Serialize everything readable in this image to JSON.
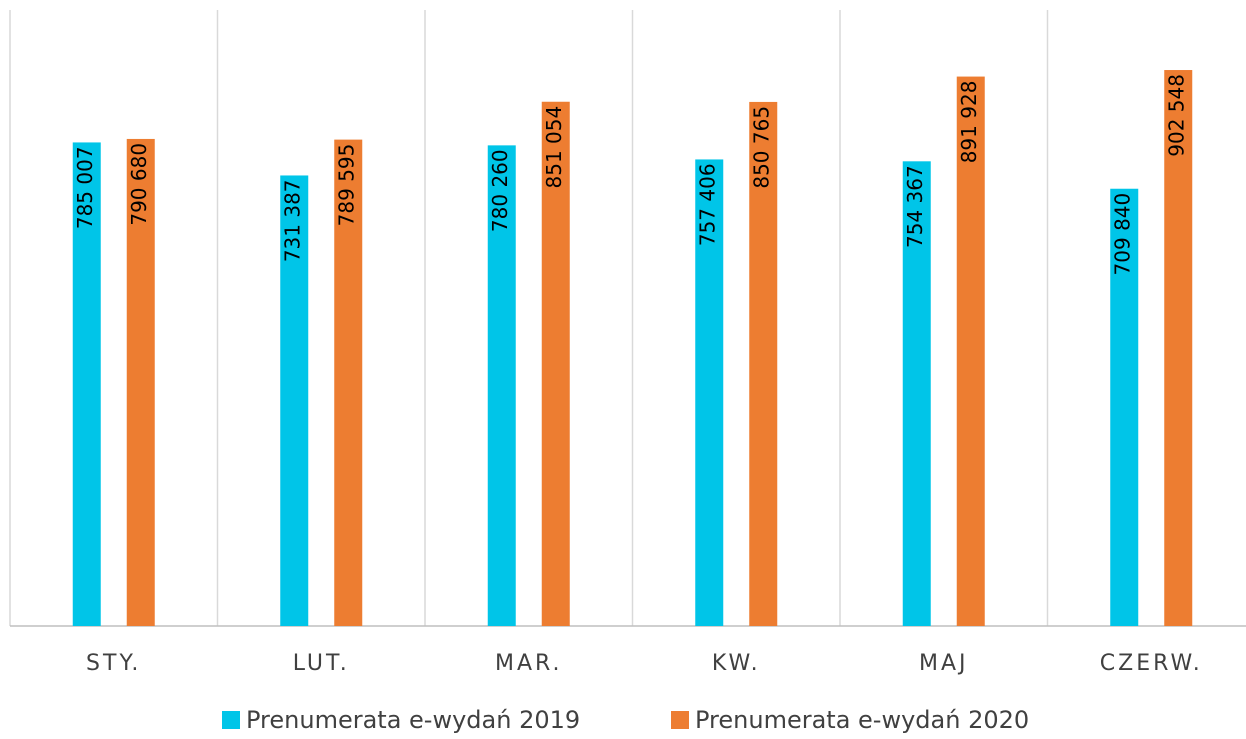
{
  "chart_data": {
    "type": "bar",
    "categories": [
      "STY.",
      "LUT.",
      "MAR.",
      "KW.",
      "MAJ",
      "CZERW."
    ],
    "series": [
      {
        "name": "Prenumerata e-wydań 2019",
        "color": "#00c5e8",
        "values": [
          785007,
          731387,
          780260,
          757406,
          754367,
          709840
        ],
        "value_labels": [
          "785 007",
          "731 387",
          "780 260",
          "757 406",
          "754 367",
          "709 840"
        ]
      },
      {
        "name": "Prenumerata e-wydań 2020",
        "color": "#ed7d31",
        "values": [
          790680,
          789595,
          851054,
          850765,
          891928,
          902548
        ],
        "value_labels": [
          "790 680",
          "789 595",
          "851 054",
          "850 765",
          "891 928",
          "902 548"
        ]
      }
    ],
    "ylim": [
      0,
      1000000
    ]
  }
}
